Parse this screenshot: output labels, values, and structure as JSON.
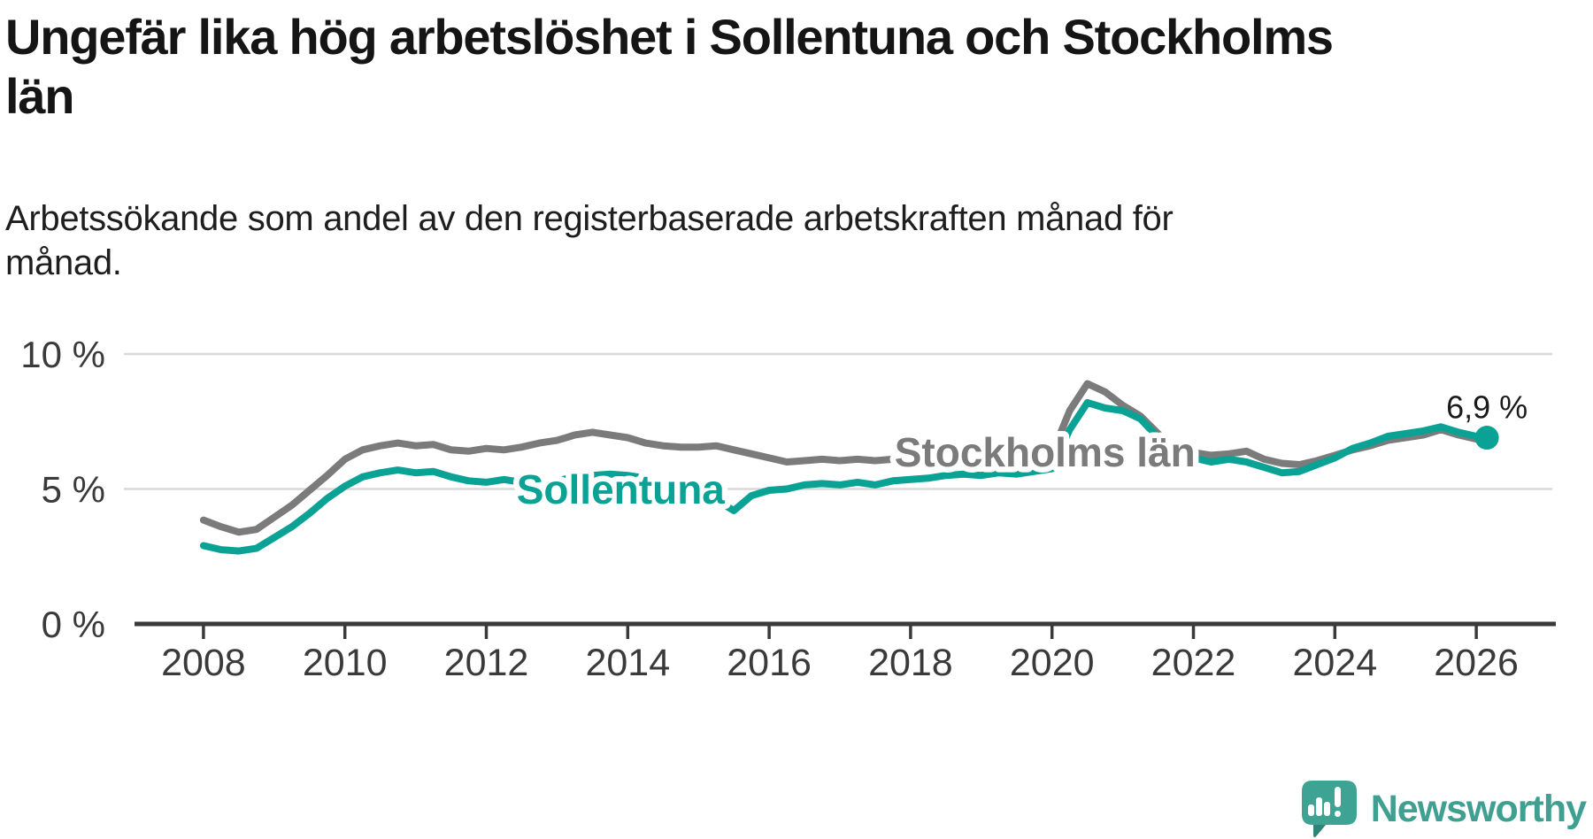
{
  "header": {
    "title_lines": [
      "Ungefär lika hög arbetslöshet i Sollentuna och Stockholms",
      "län"
    ],
    "subtitle_lines": [
      "Arbetssökande som andel av den registerbaserade arbetskraften månad för",
      "månad."
    ]
  },
  "chart_data": {
    "type": "line",
    "unit": "%",
    "x_axis": {
      "range": [
        2007.0,
        2027.125
      ],
      "ticks": [
        {
          "value": 2008,
          "label": "2008"
        },
        {
          "value": 2010,
          "label": "2010"
        },
        {
          "value": 2012,
          "label": "2012"
        },
        {
          "value": 2014,
          "label": "2014"
        },
        {
          "value": 2016,
          "label": "2016"
        },
        {
          "value": 2018,
          "label": "2018"
        },
        {
          "value": 2020,
          "label": "2020"
        },
        {
          "value": 2022,
          "label": "2022"
        },
        {
          "value": 2024,
          "label": "2024"
        },
        {
          "value": 2026,
          "label": "2026"
        }
      ]
    },
    "y_axis": {
      "range": [
        0,
        11.475
      ],
      "ticks": [
        {
          "value": 0,
          "label": "0 %"
        },
        {
          "value": 5,
          "label": "5 %"
        },
        {
          "value": 10,
          "label": "10 %"
        }
      ]
    },
    "grid_on": true,
    "legend_position": "inline-labels",
    "series": [
      {
        "name": "Stockholms län",
        "color": "#7b7b7b",
        "label_pos": {
          "x": 2019.9,
          "y": 6.36
        },
        "x": [
          2008,
          2008.25,
          2008.5,
          2008.75,
          2009,
          2009.25,
          2009.5,
          2009.75,
          2010,
          2010.25,
          2010.5,
          2010.75,
          2011,
          2011.25,
          2011.5,
          2011.75,
          2012,
          2012.25,
          2012.5,
          2012.75,
          2013,
          2013.25,
          2013.5,
          2013.75,
          2014,
          2014.25,
          2014.5,
          2014.75,
          2015,
          2015.25,
          2015.5,
          2015.75,
          2016,
          2016.25,
          2016.5,
          2016.75,
          2017,
          2017.25,
          2017.5,
          2017.75,
          2018,
          2018.25,
          2018.5,
          2018.75,
          2019,
          2019.25,
          2019.5,
          2019.75,
          2020,
          2020.25,
          2020.5,
          2020.75,
          2021,
          2021.25,
          2021.5,
          2021.75,
          2022,
          2022.25,
          2022.5,
          2022.75,
          2023,
          2023.25,
          2023.5,
          2023.75,
          2024,
          2024.25,
          2024.5,
          2024.75,
          2025,
          2025.25,
          2025.5,
          2025.75,
          2026,
          2026.1
        ],
        "values": [
          3.85,
          3.6,
          3.4,
          3.5,
          3.95,
          4.4,
          4.95,
          5.5,
          6.1,
          6.45,
          6.6,
          6.7,
          6.6,
          6.65,
          6.45,
          6.4,
          6.5,
          6.45,
          6.55,
          6.7,
          6.8,
          7.0,
          7.1,
          7.0,
          6.9,
          6.7,
          6.6,
          6.55,
          6.55,
          6.6,
          6.45,
          6.3,
          6.15,
          6.0,
          6.05,
          6.1,
          6.05,
          6.1,
          6.05,
          6.1,
          6.1,
          6.1,
          6.1,
          6.1,
          6.15,
          6.1,
          6.15,
          6.1,
          6.3,
          7.9,
          8.9,
          8.6,
          8.1,
          7.7,
          7.05,
          6.5,
          6.35,
          6.25,
          6.3,
          6.4,
          6.1,
          5.95,
          5.9,
          6.05,
          6.25,
          6.45,
          6.6,
          6.8,
          6.9,
          7.0,
          7.2,
          7.0,
          6.85,
          6.8
        ]
      },
      {
        "name": "Sollentuna",
        "color": "#0aa294",
        "label_pos": {
          "x": 2013.9,
          "y": 4.98
        },
        "end_dot": true,
        "end_label": "6,9 %",
        "x": [
          2008,
          2008.25,
          2008.5,
          2008.75,
          2009,
          2009.25,
          2009.5,
          2009.75,
          2010,
          2010.25,
          2010.5,
          2010.75,
          2011,
          2011.25,
          2011.5,
          2011.75,
          2012,
          2012.25,
          2012.5,
          2012.75,
          2013,
          2013.25,
          2013.5,
          2013.75,
          2014,
          2014.25,
          2014.5,
          2014.75,
          2015,
          2015.25,
          2015.5,
          2015.75,
          2016,
          2016.25,
          2016.5,
          2016.75,
          2017,
          2017.25,
          2017.5,
          2017.75,
          2018,
          2018.25,
          2018.5,
          2018.75,
          2019,
          2019.25,
          2019.5,
          2019.75,
          2020,
          2020.25,
          2020.5,
          2020.75,
          2021,
          2021.25,
          2021.5,
          2021.75,
          2022,
          2022.25,
          2022.5,
          2022.75,
          2023,
          2023.25,
          2023.5,
          2023.75,
          2024,
          2024.25,
          2024.5,
          2024.75,
          2025,
          2025.25,
          2025.5,
          2025.75,
          2026,
          2026.15
        ],
        "values": [
          2.9,
          2.75,
          2.7,
          2.8,
          3.2,
          3.6,
          4.1,
          4.65,
          5.1,
          5.45,
          5.6,
          5.7,
          5.6,
          5.65,
          5.45,
          5.3,
          5.25,
          5.35,
          5.25,
          5.2,
          5.3,
          5.45,
          5.5,
          5.55,
          5.5,
          5.4,
          5.25,
          5.1,
          4.95,
          4.6,
          4.2,
          4.75,
          4.95,
          5.0,
          5.15,
          5.2,
          5.15,
          5.25,
          5.15,
          5.3,
          5.35,
          5.4,
          5.5,
          5.55,
          5.5,
          5.6,
          5.55,
          5.65,
          5.75,
          7.2,
          8.2,
          8.0,
          7.9,
          7.6,
          6.9,
          6.4,
          6.15,
          6.0,
          6.1,
          6.0,
          5.8,
          5.6,
          5.65,
          5.9,
          6.15,
          6.5,
          6.7,
          6.95,
          7.05,
          7.15,
          7.3,
          7.1,
          6.95,
          6.9
        ]
      }
    ],
    "colors": {
      "grid": "#d9d9d9",
      "axis": "#3a3a3a",
      "tick_label": "#3a3a3a",
      "annotation": "#1a1a1a",
      "label_halo": "#ffffff"
    }
  },
  "footer": {
    "brand_name": "Newsworthy",
    "brand_color": "#3fa091",
    "icon": "newsworthy-speech-bubble-chart-icon"
  }
}
